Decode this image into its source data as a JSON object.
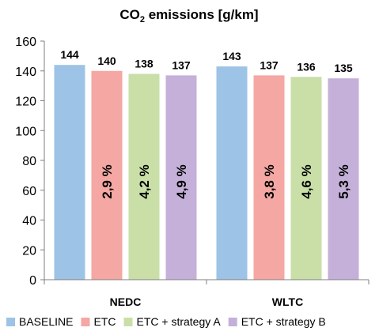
{
  "chart_data": {
    "type": "bar",
    "title": "CO2 emissions [g/km]",
    "title_main": "CO",
    "title_sub": "2",
    "title_rest": " emissions [g/km]",
    "categories": [
      "NEDC",
      "WLTC"
    ],
    "ylim": [
      0,
      160
    ],
    "yticks": [
      0,
      20,
      40,
      60,
      80,
      100,
      120,
      140,
      160
    ],
    "grid": false,
    "legend_position": "bottom",
    "series": [
      {
        "name": "BASELINE",
        "color": "#9dc3e6",
        "values": [
          144,
          143
        ],
        "value_labels": [
          "144",
          "143"
        ],
        "pct_labels": [
          "",
          ""
        ]
      },
      {
        "name": "ETC",
        "color": "#f4a7a3",
        "values": [
          140,
          137
        ],
        "value_labels": [
          "140",
          "137"
        ],
        "pct_labels": [
          "2,9 %",
          "3,8 %"
        ]
      },
      {
        "name": "ETC + strategy A",
        "color": "#c9dfa7",
        "values": [
          138,
          136
        ],
        "value_labels": [
          "138",
          "136"
        ],
        "pct_labels": [
          "4,2 %",
          "4,6 %"
        ]
      },
      {
        "name": "ETC + strategy B",
        "color": "#c4b0d8",
        "values": [
          137,
          135
        ],
        "value_labels": [
          "137",
          "135"
        ],
        "pct_labels": [
          "4,9 %",
          "5,3 %"
        ]
      }
    ]
  }
}
